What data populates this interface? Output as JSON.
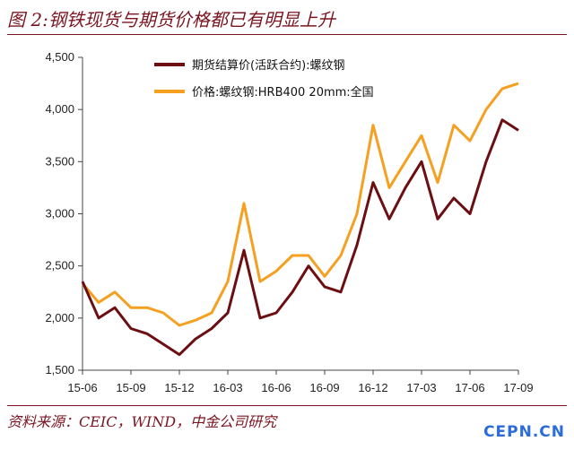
{
  "header": {
    "title": "图 2:钢铁现货与期货价格都已有明显上升"
  },
  "footer": {
    "source": "资料来源：CEIC，WIND，中金公司研究",
    "watermark": "CEPN.CN"
  },
  "chart_data": {
    "type": "line",
    "title": "",
    "xlabel": "",
    "ylabel": "",
    "ylim": [
      1500,
      4500
    ],
    "y_ticks": [
      1500,
      2000,
      2500,
      3000,
      3500,
      4000,
      4500
    ],
    "y_tick_labels": [
      "1,500",
      "2,000",
      "2,500",
      "3,000",
      "3,500",
      "4,000",
      "4,500"
    ],
    "x_ticks": [
      "15-06",
      "15-09",
      "15-12",
      "16-03",
      "16-06",
      "16-09",
      "16-12",
      "17-03",
      "17-06",
      "17-09"
    ],
    "x": [
      "15-06",
      "15-07",
      "15-08",
      "15-09",
      "15-10",
      "15-11",
      "15-12",
      "16-01",
      "16-02",
      "16-03",
      "16-04",
      "16-05",
      "16-06",
      "16-07",
      "16-08",
      "16-09",
      "16-10",
      "16-11",
      "16-12",
      "17-01",
      "17-02",
      "17-03",
      "17-04",
      "17-05",
      "17-06",
      "17-07",
      "17-08",
      "17-09"
    ],
    "legend_position": "top-center",
    "grid": false,
    "series": [
      {
        "name": "期货结算价(活跃合约):螺纹钢",
        "color": "#6b0f12",
        "values": [
          2350,
          2000,
          2100,
          1900,
          1850,
          1750,
          1650,
          1800,
          1900,
          2050,
          2650,
          2000,
          2050,
          2250,
          2500,
          2300,
          2250,
          2700,
          3300,
          2950,
          3250,
          3500,
          2950,
          3150,
          3000,
          3500,
          3900,
          3800
        ]
      },
      {
        "name": "价格:螺纹钢:HRB400 20mm:全国",
        "color": "#f5a020",
        "values": [
          2330,
          2150,
          2250,
          2100,
          2100,
          2050,
          1930,
          1980,
          2050,
          2350,
          3100,
          2350,
          2450,
          2600,
          2600,
          2400,
          2600,
          3000,
          3850,
          3250,
          3500,
          3750,
          3300,
          3850,
          3700,
          4000,
          4200,
          4250
        ]
      }
    ]
  }
}
